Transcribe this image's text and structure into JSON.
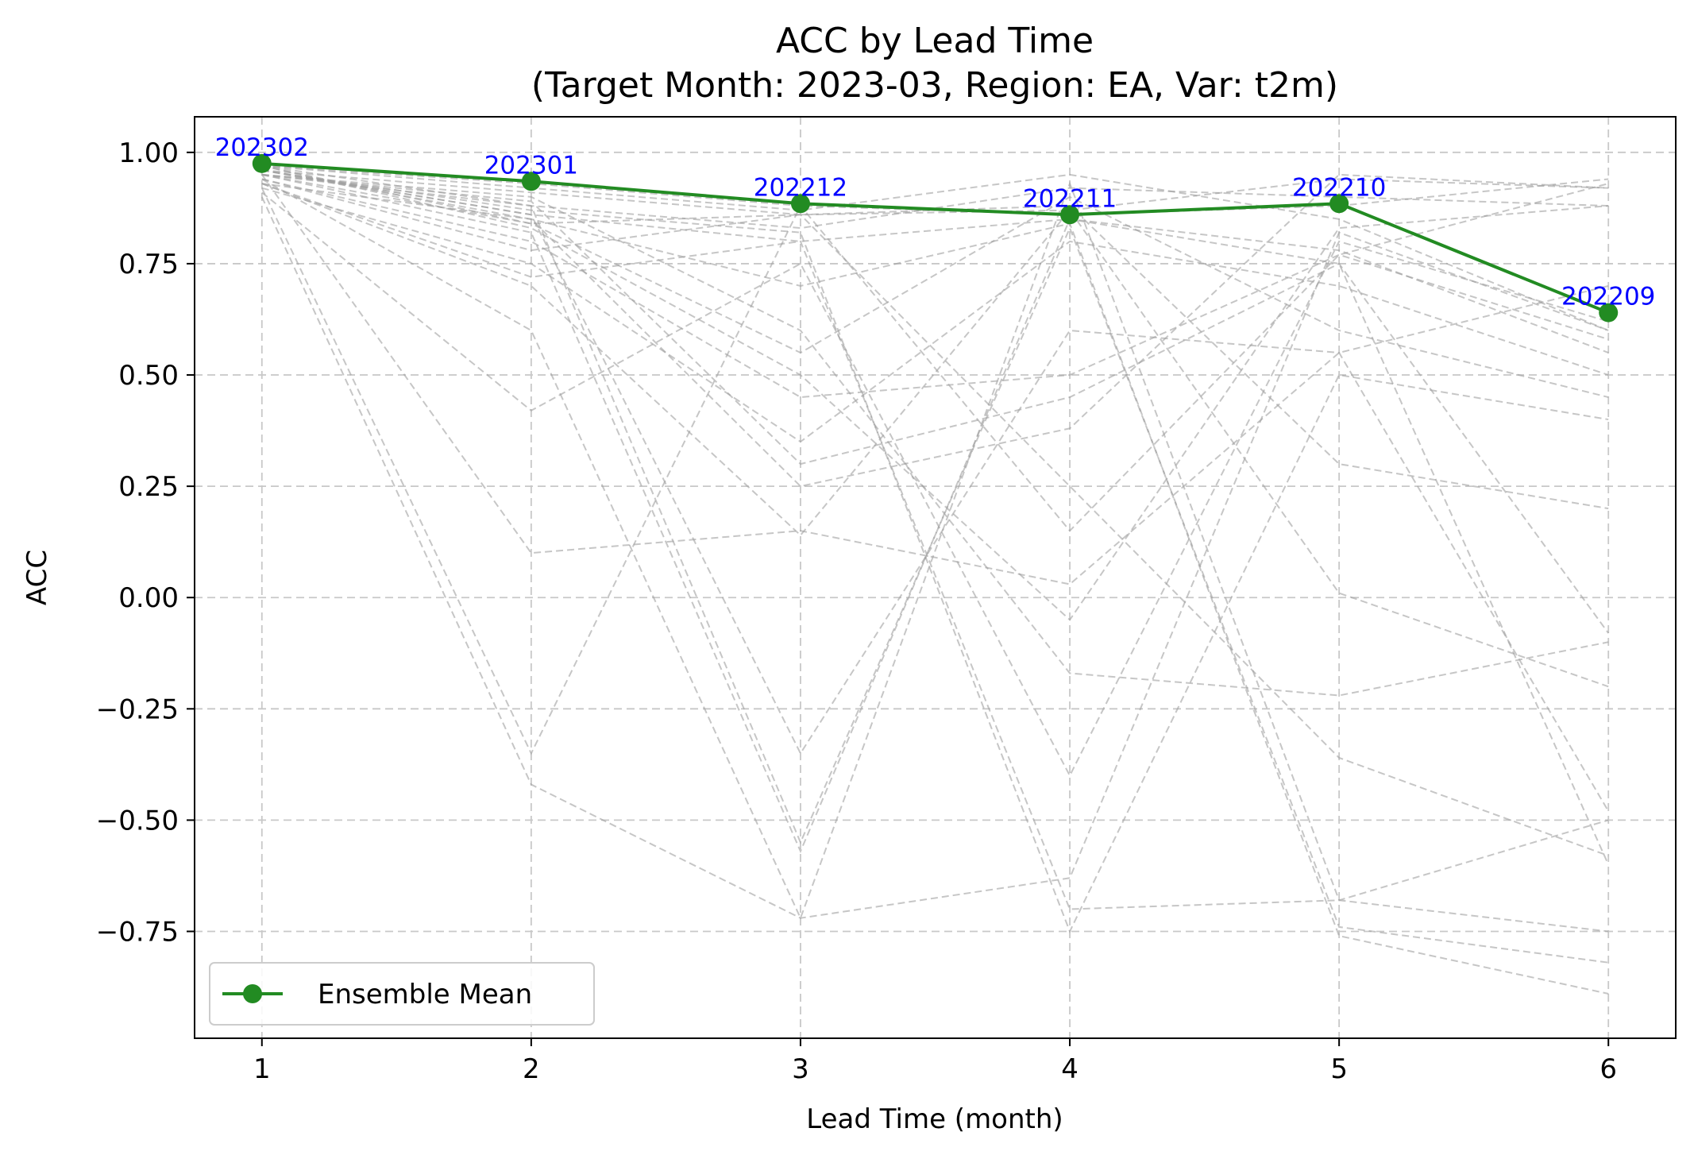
{
  "chart_data": {
    "type": "line",
    "title": "ACC by Lead Time",
    "subtitle": "(Target Month: 2023-03, Region: EA, Var: t2m)",
    "xlabel": "Lead Time (month)",
    "ylabel": "ACC",
    "xlim": [
      0.75,
      6.25
    ],
    "ylim": [
      -0.99,
      1.08
    ],
    "x_ticks": [
      1,
      2,
      3,
      4,
      5,
      6
    ],
    "y_ticks": [
      1.0,
      0.75,
      0.5,
      0.25,
      0.0,
      -0.25,
      -0.5,
      -0.75
    ],
    "y_tick_labels": [
      "1.00",
      "0.75",
      "0.50",
      "0.25",
      "0.00",
      "−0.25",
      "−0.50",
      "−0.75"
    ],
    "grid": true,
    "legend_position": "lower-left",
    "colors": {
      "mean": "#228b22",
      "members": "#a0a0a0",
      "point_labels": "#0000ff"
    },
    "series": [
      {
        "name": "Ensemble Mean",
        "x": [
          1,
          2,
          3,
          4,
          5,
          6
        ],
        "values": [
          0.975,
          0.935,
          0.885,
          0.86,
          0.885,
          0.64
        ],
        "point_labels": [
          "202302",
          "202301",
          "202212",
          "202211",
          "202210",
          "202209"
        ]
      }
    ],
    "members": [
      [
        0.97,
        0.93,
        0.88,
        0.86,
        0.88,
        0.94
      ],
      [
        0.96,
        0.91,
        0.86,
        0.87,
        0.94,
        0.92
      ],
      [
        0.95,
        0.88,
        0.83,
        0.92,
        0.9,
        0.88
      ],
      [
        0.97,
        0.92,
        0.87,
        0.95,
        0.85,
        0.6
      ],
      [
        0.96,
        0.86,
        0.8,
        0.85,
        0.78,
        0.55
      ],
      [
        0.95,
        0.84,
        0.55,
        0.9,
        0.6,
        0.45
      ],
      [
        0.94,
        0.8,
        0.45,
        0.5,
        0.77,
        0.58
      ],
      [
        0.96,
        0.85,
        0.25,
        0.38,
        0.95,
        0.92
      ],
      [
        0.93,
        0.7,
        0.14,
        0.87,
        0.01,
        -0.2
      ],
      [
        0.92,
        -0.35,
        0.88,
        0.15,
        0.77,
        0.93
      ],
      [
        0.95,
        0.1,
        0.15,
        0.03,
        0.55,
        0.7
      ],
      [
        0.91,
        0.42,
        0.75,
        -0.4,
        0.8,
        0.62
      ],
      [
        0.9,
        -0.42,
        -0.72,
        -0.63,
        0.82,
        0.6
      ],
      [
        0.97,
        0.88,
        -0.55,
        0.83,
        -0.74,
        -0.82
      ],
      [
        0.94,
        0.6,
        -0.72,
        0.93,
        -0.68,
        -0.5
      ],
      [
        0.95,
        0.82,
        -0.57,
        0.85,
        0.75,
        -0.6
      ],
      [
        0.96,
        0.87,
        0.82,
        -0.75,
        0.5,
        0.4
      ],
      [
        0.95,
        0.9,
        0.6,
        -0.17,
        -0.22,
        -0.1
      ],
      [
        0.93,
        0.85,
        0.7,
        0.84,
        -0.76,
        -0.89
      ],
      [
        0.97,
        0.83,
        0.5,
        -0.05,
        0.83,
        0.88
      ],
      [
        0.92,
        0.75,
        0.35,
        0.8,
        0.7,
        0.5
      ],
      [
        0.96,
        0.86,
        -0.35,
        0.6,
        0.55,
        -0.48
      ],
      [
        0.94,
        0.78,
        0.86,
        0.25,
        -0.36,
        -0.58
      ],
      [
        0.95,
        0.89,
        0.3,
        0.45,
        0.75,
        -0.08
      ],
      [
        0.93,
        0.72,
        0.8,
        -0.7,
        -0.68,
        -0.75
      ],
      [
        0.97,
        0.84,
        0.86,
        0.88,
        0.3,
        0.2
      ]
    ]
  }
}
